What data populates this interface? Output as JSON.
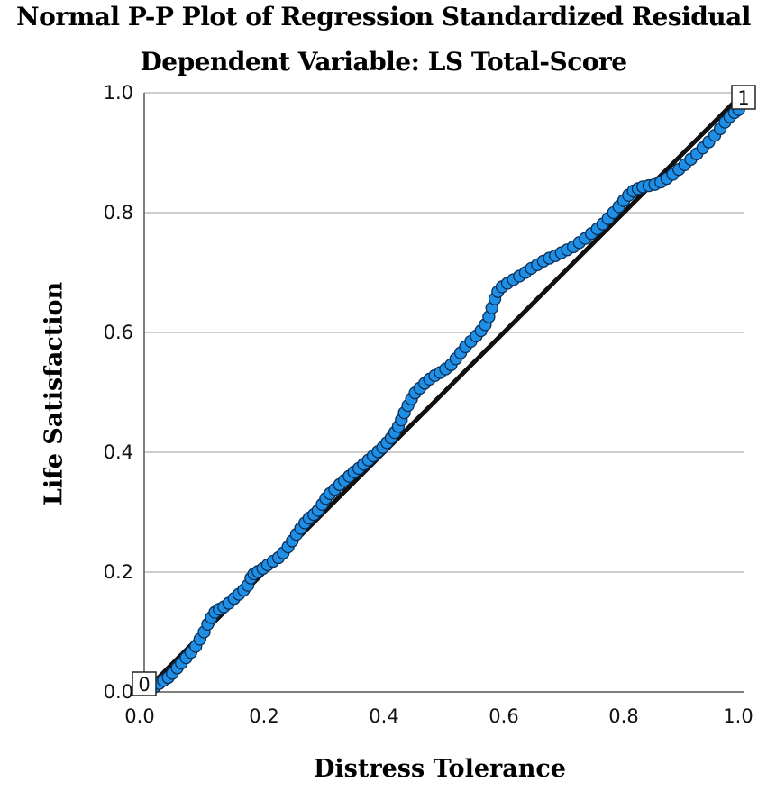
{
  "chart_data": {
    "type": "scatter",
    "title": "Normal P-P Plot of Regression Standardized Residual",
    "subtitle": "Dependent Variable: LS Total-Score",
    "xlabel": "Distress Tolerance",
    "ylabel": "Life Satisfaction",
    "xlim": [
      0.0,
      1.0
    ],
    "ylim": [
      0.0,
      1.0
    ],
    "x_ticks": [
      "0.0",
      "0.2",
      "0.4",
      "0.6",
      "0.8",
      "1.0"
    ],
    "y_ticks": [
      "0.0",
      "0.2",
      "0.4",
      "0.6",
      "0.8",
      "1.0"
    ],
    "grid": "horizontal",
    "reference_line": {
      "from": [
        0.0,
        0.0
      ],
      "to": [
        1.0,
        1.0
      ]
    },
    "corner_labels": [
      "0",
      "1"
    ],
    "marker_color": "#1f8fe6",
    "marker_edge_color": "#0a2e55",
    "points": [
      [
        0.01,
        0.004
      ],
      [
        0.018,
        0.009
      ],
      [
        0.025,
        0.014
      ],
      [
        0.032,
        0.019
      ],
      [
        0.04,
        0.024
      ],
      [
        0.047,
        0.031
      ],
      [
        0.055,
        0.04
      ],
      [
        0.062,
        0.048
      ],
      [
        0.07,
        0.057
      ],
      [
        0.078,
        0.066
      ],
      [
        0.086,
        0.076
      ],
      [
        0.093,
        0.088
      ],
      [
        0.1,
        0.1
      ],
      [
        0.106,
        0.113
      ],
      [
        0.112,
        0.124
      ],
      [
        0.118,
        0.133
      ],
      [
        0.125,
        0.138
      ],
      [
        0.133,
        0.142
      ],
      [
        0.141,
        0.148
      ],
      [
        0.15,
        0.156
      ],
      [
        0.158,
        0.163
      ],
      [
        0.166,
        0.17
      ],
      [
        0.173,
        0.178
      ],
      [
        0.178,
        0.19
      ],
      [
        0.183,
        0.197
      ],
      [
        0.19,
        0.201
      ],
      [
        0.198,
        0.206
      ],
      [
        0.206,
        0.212
      ],
      [
        0.215,
        0.218
      ],
      [
        0.224,
        0.224
      ],
      [
        0.232,
        0.232
      ],
      [
        0.24,
        0.242
      ],
      [
        0.247,
        0.252
      ],
      [
        0.254,
        0.263
      ],
      [
        0.261,
        0.273
      ],
      [
        0.268,
        0.282
      ],
      [
        0.275,
        0.29
      ],
      [
        0.283,
        0.296
      ],
      [
        0.29,
        0.303
      ],
      [
        0.297,
        0.313
      ],
      [
        0.303,
        0.323
      ],
      [
        0.31,
        0.331
      ],
      [
        0.318,
        0.338
      ],
      [
        0.326,
        0.346
      ],
      [
        0.334,
        0.353
      ],
      [
        0.342,
        0.36
      ],
      [
        0.35,
        0.367
      ],
      [
        0.358,
        0.373
      ],
      [
        0.366,
        0.38
      ],
      [
        0.374,
        0.387
      ],
      [
        0.382,
        0.394
      ],
      [
        0.39,
        0.401
      ],
      [
        0.398,
        0.408
      ],
      [
        0.405,
        0.416
      ],
      [
        0.412,
        0.424
      ],
      [
        0.418,
        0.433
      ],
      [
        0.424,
        0.443
      ],
      [
        0.429,
        0.454
      ],
      [
        0.434,
        0.466
      ],
      [
        0.44,
        0.478
      ],
      [
        0.446,
        0.489
      ],
      [
        0.452,
        0.499
      ],
      [
        0.46,
        0.507
      ],
      [
        0.468,
        0.515
      ],
      [
        0.476,
        0.522
      ],
      [
        0.485,
        0.528
      ],
      [
        0.494,
        0.533
      ],
      [
        0.503,
        0.539
      ],
      [
        0.512,
        0.546
      ],
      [
        0.52,
        0.556
      ],
      [
        0.528,
        0.566
      ],
      [
        0.536,
        0.576
      ],
      [
        0.545,
        0.585
      ],
      [
        0.554,
        0.594
      ],
      [
        0.562,
        0.603
      ],
      [
        0.569,
        0.613
      ],
      [
        0.575,
        0.626
      ],
      [
        0.58,
        0.641
      ],
      [
        0.585,
        0.656
      ],
      [
        0.59,
        0.668
      ],
      [
        0.597,
        0.676
      ],
      [
        0.606,
        0.682
      ],
      [
        0.616,
        0.688
      ],
      [
        0.626,
        0.694
      ],
      [
        0.636,
        0.7
      ],
      [
        0.646,
        0.707
      ],
      [
        0.656,
        0.713
      ],
      [
        0.666,
        0.719
      ],
      [
        0.676,
        0.724
      ],
      [
        0.686,
        0.728
      ],
      [
        0.696,
        0.733
      ],
      [
        0.706,
        0.738
      ],
      [
        0.716,
        0.743
      ],
      [
        0.726,
        0.75
      ],
      [
        0.736,
        0.757
      ],
      [
        0.746,
        0.765
      ],
      [
        0.756,
        0.773
      ],
      [
        0.765,
        0.781
      ],
      [
        0.774,
        0.79
      ],
      [
        0.783,
        0.8
      ],
      [
        0.792,
        0.81
      ],
      [
        0.8,
        0.82
      ],
      [
        0.808,
        0.829
      ],
      [
        0.816,
        0.836
      ],
      [
        0.824,
        0.84
      ],
      [
        0.832,
        0.843
      ],
      [
        0.842,
        0.845
      ],
      [
        0.852,
        0.847
      ],
      [
        0.862,
        0.851
      ],
      [
        0.872,
        0.857
      ],
      [
        0.882,
        0.864
      ],
      [
        0.892,
        0.872
      ],
      [
        0.902,
        0.88
      ],
      [
        0.912,
        0.889
      ],
      [
        0.922,
        0.898
      ],
      [
        0.932,
        0.908
      ],
      [
        0.942,
        0.918
      ],
      [
        0.952,
        0.929
      ],
      [
        0.961,
        0.94
      ],
      [
        0.969,
        0.951
      ],
      [
        0.977,
        0.96
      ],
      [
        0.985,
        0.967
      ],
      [
        0.992,
        0.972
      ]
    ]
  }
}
